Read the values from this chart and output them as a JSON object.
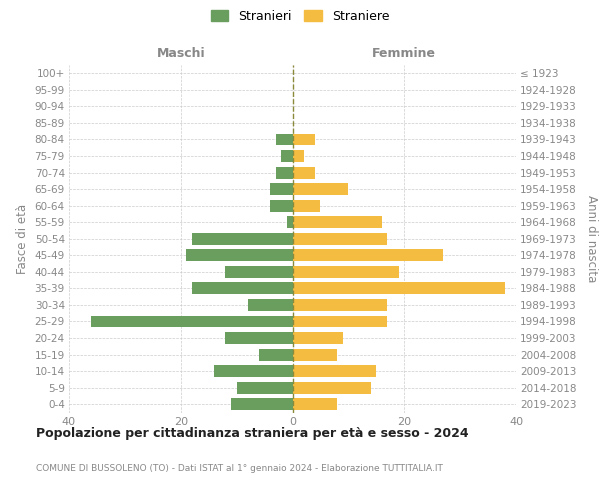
{
  "age_groups": [
    "0-4",
    "5-9",
    "10-14",
    "15-19",
    "20-24",
    "25-29",
    "30-34",
    "35-39",
    "40-44",
    "45-49",
    "50-54",
    "55-59",
    "60-64",
    "65-69",
    "70-74",
    "75-79",
    "80-84",
    "85-89",
    "90-94",
    "95-99",
    "100+"
  ],
  "birth_years": [
    "2019-2023",
    "2014-2018",
    "2009-2013",
    "2004-2008",
    "1999-2003",
    "1994-1998",
    "1989-1993",
    "1984-1988",
    "1979-1983",
    "1974-1978",
    "1969-1973",
    "1964-1968",
    "1959-1963",
    "1954-1958",
    "1949-1953",
    "1944-1948",
    "1939-1943",
    "1934-1938",
    "1929-1933",
    "1924-1928",
    "≤ 1923"
  ],
  "maschi": [
    11,
    10,
    14,
    6,
    12,
    36,
    8,
    18,
    12,
    19,
    18,
    1,
    4,
    4,
    3,
    2,
    3,
    0,
    0,
    0,
    0
  ],
  "femmine": [
    8,
    14,
    15,
    8,
    9,
    17,
    17,
    38,
    19,
    27,
    17,
    16,
    5,
    10,
    4,
    2,
    4,
    0,
    0,
    0,
    0
  ],
  "color_maschi": "#6a9e5f",
  "color_femmine": "#f5bc42",
  "background_color": "#ffffff",
  "grid_color": "#cccccc",
  "title": "Popolazione per cittadinanza straniera per età e sesso - 2024",
  "subtitle": "COMUNE DI BUSSOLENO (TO) - Dati ISTAT al 1° gennaio 2024 - Elaborazione TUTTITALIA.IT",
  "ylabel_left": "Fasce di età",
  "ylabel_right": "Anni di nascita",
  "xlabel_maschi": "Maschi",
  "xlabel_femmine": "Femmine",
  "legend_maschi": "Stranieri",
  "legend_femmine": "Straniere",
  "xlim": 40
}
